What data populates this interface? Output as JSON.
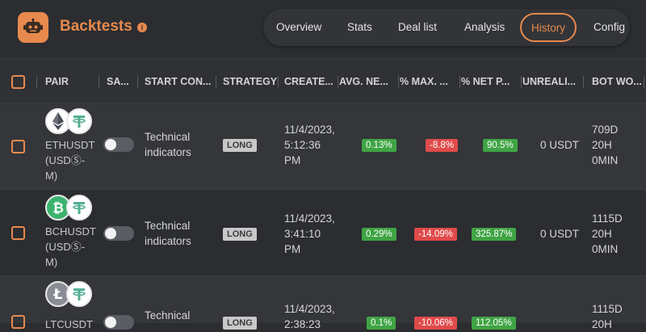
{
  "header": {
    "title": "Backtests",
    "tabs": [
      {
        "label": "Overview"
      },
      {
        "label": "Stats"
      },
      {
        "label": "Deal list"
      },
      {
        "label": "Analysis"
      },
      {
        "label": "History"
      },
      {
        "label": "Config"
      }
    ],
    "active_tab": "History"
  },
  "table": {
    "columns": [
      "PAIR",
      "SA...",
      "START CON...",
      "STRATEGY",
      "CREATE...",
      "AVG. NE...",
      "% MAX. ...",
      "% NET P...",
      "UNREALI...",
      "BOT WO..."
    ],
    "rows": [
      {
        "coin_icon": "ethereum-icon",
        "pair": "ETHUSDT (USDⓈ-M)",
        "pair_line1": "ETHUSDT",
        "pair_line2": "(USDⓈ-",
        "pair_line3": "M)",
        "start_condition_1": "Technical",
        "start_condition_2": "indicators",
        "strategy": "LONG",
        "created_1": "11/4/2023,",
        "created_2": "5:12:36",
        "created_3": "PM",
        "avg_net": "0.13%",
        "max_drawdown": "-8.8%",
        "net_profit": "90.5%",
        "unrealized": "0 USDT",
        "bot_work_1": "709D",
        "bot_work_2": "20H",
        "bot_work_3": "0MIN"
      },
      {
        "coin_icon": "bitcoin-cash-icon",
        "pair": "BCHUSDT (USDⓈ-M)",
        "pair_line1": "BCHUSDT",
        "pair_line2": "(USDⓈ-",
        "pair_line3": "M)",
        "start_condition_1": "Technical",
        "start_condition_2": "indicators",
        "strategy": "LONG",
        "created_1": "11/4/2023,",
        "created_2": "3:41:10",
        "created_3": "PM",
        "avg_net": "0.29%",
        "max_drawdown": "-14.09%",
        "net_profit": "325.87%",
        "unrealized": "0 USDT",
        "bot_work_1": "1115D",
        "bot_work_2": "20H",
        "bot_work_3": "0MIN"
      },
      {
        "coin_icon": "litecoin-icon",
        "pair_line1": "LTCUSDT",
        "start_condition_1": "Technical",
        "strategy": "LONG",
        "created_1": "11/4/2023,",
        "created_2": "2:38:23",
        "avg_net": "0.1%",
        "max_drawdown": "-10.06%",
        "net_profit": "112.05%",
        "bot_work_1": "1115D",
        "bot_work_2": "20H"
      }
    ]
  },
  "colors": {
    "accent": "#e8894d",
    "positive": "#3fa444",
    "negative": "#e04a4a",
    "background": "#2b2d31"
  }
}
